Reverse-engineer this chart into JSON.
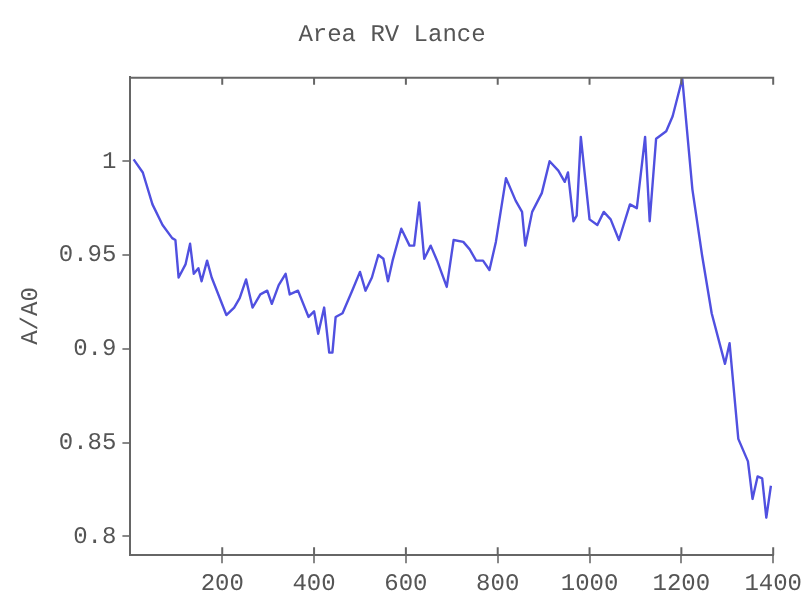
{
  "chart_data": {
    "type": "line",
    "title": "Area RV Lance",
    "ylabel": "A/A0",
    "grid": false,
    "legend": false,
    "marker": "none",
    "line_style": "solid",
    "xlim": [
      0,
      1400
    ],
    "xticks": [
      200,
      400,
      600,
      800,
      1000,
      1200,
      1400
    ],
    "ylim": [
      0.79,
      1.045
    ],
    "yticks": [
      0.8,
      0.85,
      0.9,
      0.95,
      1
    ],
    "x": [
      7,
      27,
      48,
      70,
      91,
      98,
      105,
      120,
      130,
      138,
      148,
      155,
      167,
      177,
      209,
      226,
      238,
      252,
      266,
      283,
      298,
      308,
      323,
      338,
      347,
      365,
      388,
      400,
      409,
      422,
      433,
      440,
      447,
      462,
      483,
      500,
      512,
      526,
      540,
      551,
      561,
      571,
      590,
      608,
      618,
      629,
      640,
      654,
      668,
      689,
      704,
      725,
      739,
      753,
      768,
      782,
      796,
      818,
      839,
      853,
      860,
      875,
      896,
      913,
      932,
      946,
      953,
      965,
      972,
      981,
      1000,
      1017,
      1031,
      1046,
      1064,
      1088,
      1103,
      1121,
      1131,
      1145,
      1167,
      1181,
      1202,
      1224,
      1245,
      1266,
      1295,
      1305,
      1324,
      1345,
      1355,
      1366,
      1376,
      1385,
      1395
    ],
    "series": [
      {
        "color": "#5050e0",
        "values": [
          1.001,
          0.994,
          0.977,
          0.966,
          0.959,
          0.958,
          0.938,
          0.945,
          0.956,
          0.94,
          0.943,
          0.936,
          0.947,
          0.938,
          0.918,
          0.922,
          0.927,
          0.937,
          0.922,
          0.929,
          0.931,
          0.924,
          0.934,
          0.94,
          0.929,
          0.931,
          0.917,
          0.92,
          0.908,
          0.922,
          0.898,
          0.898,
          0.917,
          0.919,
          0.931,
          0.941,
          0.931,
          0.938,
          0.95,
          0.948,
          0.936,
          0.947,
          0.964,
          0.955,
          0.955,
          0.978,
          0.948,
          0.955,
          0.947,
          0.933,
          0.958,
          0.957,
          0.953,
          0.947,
          0.947,
          0.942,
          0.957,
          0.991,
          0.979,
          0.973,
          0.955,
          0.973,
          0.983,
          1.0,
          0.995,
          0.989,
          0.994,
          0.968,
          0.971,
          1.013,
          0.969,
          0.966,
          0.973,
          0.969,
          0.958,
          0.977,
          0.975,
          1.013,
          0.968,
          1.012,
          1.016,
          1.024,
          1.044,
          0.985,
          0.95,
          0.919,
          0.892,
          0.903,
          0.852,
          0.84,
          0.82,
          0.832,
          0.831,
          0.81,
          0.827
        ]
      }
    ]
  }
}
